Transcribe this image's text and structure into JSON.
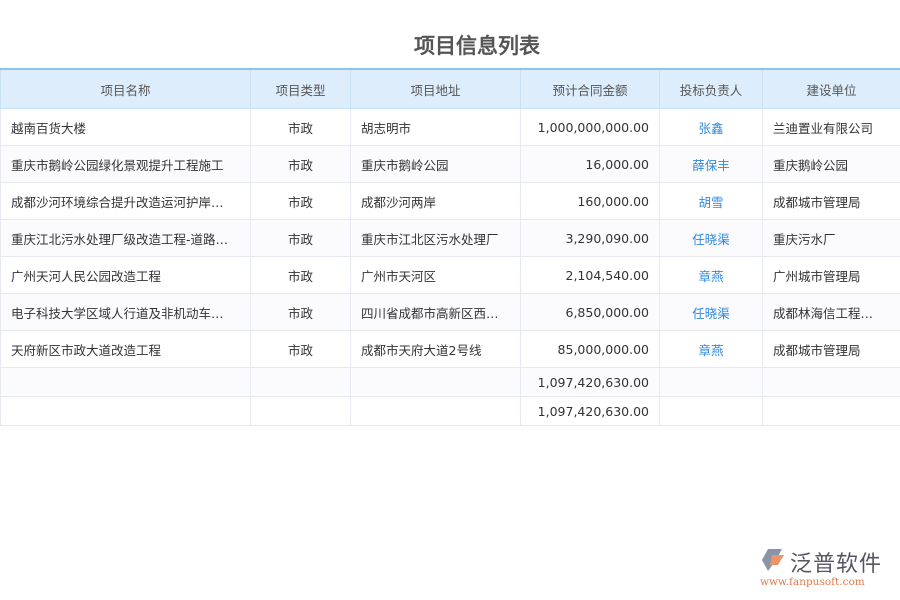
{
  "title": "项目信息列表",
  "columns": [
    "项目名称",
    "项目类型",
    "项目地址",
    "预计合同金额",
    "投标负责人",
    "建设单位"
  ],
  "rows": [
    [
      "越南百货大楼",
      "市政",
      "胡志明市",
      "1,000,000,000.00",
      "张鑫",
      "兰迪置业有限公司"
    ],
    [
      "重庆市鹅岭公园绿化景观提升工程施工",
      "市政",
      "重庆市鹅岭公园",
      "16,000.00",
      "薛保丰",
      "重庆鹅岭公园"
    ],
    [
      "成都沙河环境综合提升改造运河护岸…",
      "市政",
      "成都沙河两岸",
      "160,000.00",
      "胡雪",
      "成都城市管理局"
    ],
    [
      "重庆江北污水处理厂级改造工程-道路…",
      "市政",
      "重庆市江北区污水处理厂",
      "3,290,090.00",
      "任晓渠",
      "重庆污水厂"
    ],
    [
      "广州天河人民公园改造工程",
      "市政",
      "广州市天河区",
      "2,104,540.00",
      "章燕",
      "广州城市管理局"
    ],
    [
      "电子科技大学区域人行道及非机动车…",
      "市政",
      "四川省成都市高新区西…",
      "6,850,000.00",
      "任晓渠",
      "成都林海信工程…"
    ],
    [
      "天府新区市政大道改造工程",
      "市政",
      "成都市天府大道2号线",
      "85,000,000.00",
      "章燕",
      "成都城市管理局"
    ]
  ],
  "totals": [
    "1,097,420,630.00",
    "1,097,420,630.00"
  ],
  "logo": {
    "name": "泛普软件",
    "url": "www.fanpusoft.com"
  },
  "colors": {
    "accent": "#2f8ae0",
    "header_bg": "#deedfb"
  }
}
